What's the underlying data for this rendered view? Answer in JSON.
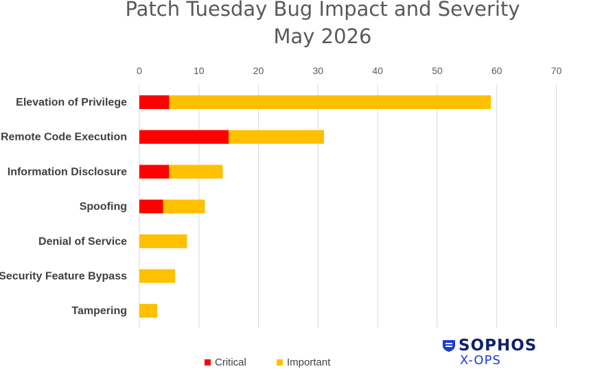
{
  "title_line1": "Patch Tuesday Bug Impact and Severity",
  "title_line2": "May 2026",
  "logo": {
    "brand": "SOPHOS",
    "sub": "X-OPS",
    "icon": "sophos-shield-icon"
  },
  "colors": {
    "critical": "#ff0000",
    "important": "#ffc000",
    "grid": "#d9d9d9"
  },
  "legend": [
    {
      "label": "Critical",
      "color": "#ff0000"
    },
    {
      "label": "Important",
      "color": "#ffc000"
    }
  ],
  "chart_data": {
    "type": "bar",
    "orientation": "horizontal",
    "stacked": true,
    "title": "Patch Tuesday Bug Impact and Severity May 2026",
    "categories": [
      "Elevation of Privilege",
      "Remote Code Execution",
      "Information Disclosure",
      "Spoofing",
      "Denial of Service",
      "Security Feature Bypass",
      "Tampering"
    ],
    "series": [
      {
        "name": "Critical",
        "values": [
          5,
          15,
          5,
          4,
          0,
          0,
          0
        ]
      },
      {
        "name": "Important",
        "values": [
          54,
          16,
          9,
          7,
          8,
          6,
          3
        ]
      }
    ],
    "xlim": [
      0,
      70
    ],
    "xticks": [
      0,
      10,
      20,
      30,
      40,
      50,
      60,
      70
    ],
    "grid": true,
    "axis_position": "top",
    "legend_position": "bottom-left"
  }
}
